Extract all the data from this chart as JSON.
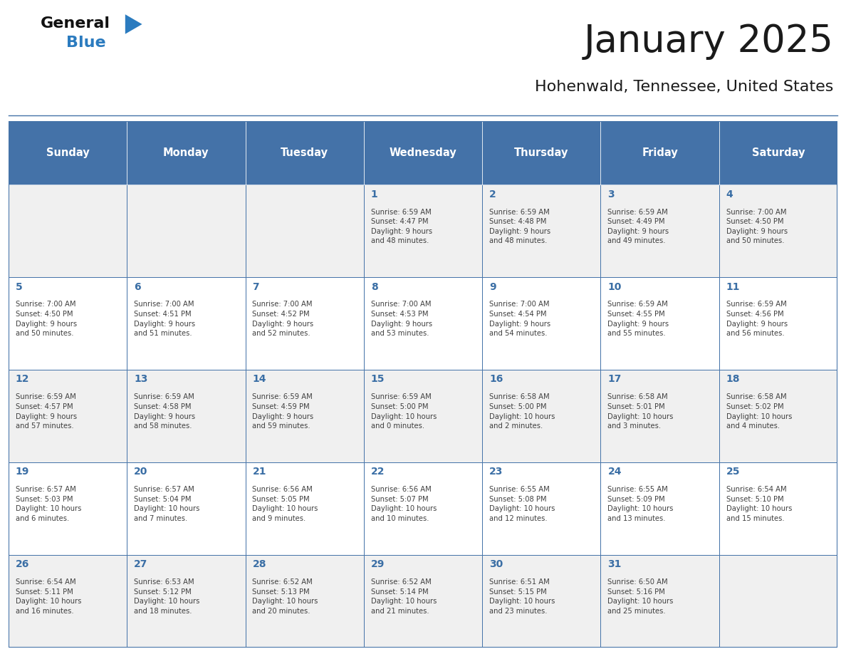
{
  "title": "January 2025",
  "subtitle": "Hohenwald, Tennessee, United States",
  "days_of_week": [
    "Sunday",
    "Monday",
    "Tuesday",
    "Wednesday",
    "Thursday",
    "Friday",
    "Saturday"
  ],
  "header_bg": "#4472a8",
  "header_text_color": "#ffffff",
  "cell_bg_light": "#f0f0f0",
  "cell_bg_white": "#ffffff",
  "day_num_color": "#3a6ea5",
  "cell_text_color": "#404040",
  "title_color": "#1a1a1a",
  "subtitle_color": "#1a1a1a",
  "logo_general_color": "#1a1a1a",
  "logo_blue_color": "#3a7abf",
  "border_color": "#4472a8",
  "weeks": [
    [
      {
        "day": "",
        "info": ""
      },
      {
        "day": "",
        "info": ""
      },
      {
        "day": "",
        "info": ""
      },
      {
        "day": "1",
        "info": "Sunrise: 6:59 AM\nSunset: 4:47 PM\nDaylight: 9 hours\nand 48 minutes."
      },
      {
        "day": "2",
        "info": "Sunrise: 6:59 AM\nSunset: 4:48 PM\nDaylight: 9 hours\nand 48 minutes."
      },
      {
        "day": "3",
        "info": "Sunrise: 6:59 AM\nSunset: 4:49 PM\nDaylight: 9 hours\nand 49 minutes."
      },
      {
        "day": "4",
        "info": "Sunrise: 7:00 AM\nSunset: 4:50 PM\nDaylight: 9 hours\nand 50 minutes."
      }
    ],
    [
      {
        "day": "5",
        "info": "Sunrise: 7:00 AM\nSunset: 4:50 PM\nDaylight: 9 hours\nand 50 minutes."
      },
      {
        "day": "6",
        "info": "Sunrise: 7:00 AM\nSunset: 4:51 PM\nDaylight: 9 hours\nand 51 minutes."
      },
      {
        "day": "7",
        "info": "Sunrise: 7:00 AM\nSunset: 4:52 PM\nDaylight: 9 hours\nand 52 minutes."
      },
      {
        "day": "8",
        "info": "Sunrise: 7:00 AM\nSunset: 4:53 PM\nDaylight: 9 hours\nand 53 minutes."
      },
      {
        "day": "9",
        "info": "Sunrise: 7:00 AM\nSunset: 4:54 PM\nDaylight: 9 hours\nand 54 minutes."
      },
      {
        "day": "10",
        "info": "Sunrise: 6:59 AM\nSunset: 4:55 PM\nDaylight: 9 hours\nand 55 minutes."
      },
      {
        "day": "11",
        "info": "Sunrise: 6:59 AM\nSunset: 4:56 PM\nDaylight: 9 hours\nand 56 minutes."
      }
    ],
    [
      {
        "day": "12",
        "info": "Sunrise: 6:59 AM\nSunset: 4:57 PM\nDaylight: 9 hours\nand 57 minutes."
      },
      {
        "day": "13",
        "info": "Sunrise: 6:59 AM\nSunset: 4:58 PM\nDaylight: 9 hours\nand 58 minutes."
      },
      {
        "day": "14",
        "info": "Sunrise: 6:59 AM\nSunset: 4:59 PM\nDaylight: 9 hours\nand 59 minutes."
      },
      {
        "day": "15",
        "info": "Sunrise: 6:59 AM\nSunset: 5:00 PM\nDaylight: 10 hours\nand 0 minutes."
      },
      {
        "day": "16",
        "info": "Sunrise: 6:58 AM\nSunset: 5:00 PM\nDaylight: 10 hours\nand 2 minutes."
      },
      {
        "day": "17",
        "info": "Sunrise: 6:58 AM\nSunset: 5:01 PM\nDaylight: 10 hours\nand 3 minutes."
      },
      {
        "day": "18",
        "info": "Sunrise: 6:58 AM\nSunset: 5:02 PM\nDaylight: 10 hours\nand 4 minutes."
      }
    ],
    [
      {
        "day": "19",
        "info": "Sunrise: 6:57 AM\nSunset: 5:03 PM\nDaylight: 10 hours\nand 6 minutes."
      },
      {
        "day": "20",
        "info": "Sunrise: 6:57 AM\nSunset: 5:04 PM\nDaylight: 10 hours\nand 7 minutes."
      },
      {
        "day": "21",
        "info": "Sunrise: 6:56 AM\nSunset: 5:05 PM\nDaylight: 10 hours\nand 9 minutes."
      },
      {
        "day": "22",
        "info": "Sunrise: 6:56 AM\nSunset: 5:07 PM\nDaylight: 10 hours\nand 10 minutes."
      },
      {
        "day": "23",
        "info": "Sunrise: 6:55 AM\nSunset: 5:08 PM\nDaylight: 10 hours\nand 12 minutes."
      },
      {
        "day": "24",
        "info": "Sunrise: 6:55 AM\nSunset: 5:09 PM\nDaylight: 10 hours\nand 13 minutes."
      },
      {
        "day": "25",
        "info": "Sunrise: 6:54 AM\nSunset: 5:10 PM\nDaylight: 10 hours\nand 15 minutes."
      }
    ],
    [
      {
        "day": "26",
        "info": "Sunrise: 6:54 AM\nSunset: 5:11 PM\nDaylight: 10 hours\nand 16 minutes."
      },
      {
        "day": "27",
        "info": "Sunrise: 6:53 AM\nSunset: 5:12 PM\nDaylight: 10 hours\nand 18 minutes."
      },
      {
        "day": "28",
        "info": "Sunrise: 6:52 AM\nSunset: 5:13 PM\nDaylight: 10 hours\nand 20 minutes."
      },
      {
        "day": "29",
        "info": "Sunrise: 6:52 AM\nSunset: 5:14 PM\nDaylight: 10 hours\nand 21 minutes."
      },
      {
        "day": "30",
        "info": "Sunrise: 6:51 AM\nSunset: 5:15 PM\nDaylight: 10 hours\nand 23 minutes."
      },
      {
        "day": "31",
        "info": "Sunrise: 6:50 AM\nSunset: 5:16 PM\nDaylight: 10 hours\nand 25 minutes."
      },
      {
        "day": "",
        "info": ""
      }
    ]
  ]
}
